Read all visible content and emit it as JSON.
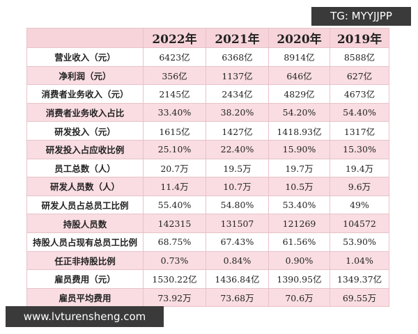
{
  "table": {
    "columns": [
      "",
      "2022年",
      "2021年",
      "2020年",
      "2019年"
    ],
    "rows": [
      [
        "营业收入（元）",
        "6423亿",
        "6368亿",
        "8914亿",
        "8588亿"
      ],
      [
        "净利润（元）",
        "356亿",
        "1137亿",
        "646亿",
        "627亿"
      ],
      [
        "消费者业务收入（元）",
        "2145亿",
        "2434亿",
        "4829亿",
        "4673亿"
      ],
      [
        "消费者业务收入占比",
        "33.40%",
        "38.20%",
        "54.20%",
        "54.40%"
      ],
      [
        "研发投入（元）",
        "1615亿",
        "1427亿",
        "1418.93亿",
        "1317亿"
      ],
      [
        "研发投入占应收比例",
        "25.10%",
        "22.40%",
        "15.90%",
        "15.30%"
      ],
      [
        "员工总数（人）",
        "20.7万",
        "19.5万",
        "19.7万",
        "19.4万"
      ],
      [
        "研发人员数（人）",
        "11.4万",
        "10.7万",
        "10.5万",
        "9.6万"
      ],
      [
        "研发人员占总员工比例",
        "55.40%",
        "54.80%",
        "53.40%",
        "49%"
      ],
      [
        "持股人员数",
        "142315",
        "131507",
        "121269",
        "104572"
      ],
      [
        "持股人员占现有总员工比例",
        "68.75%",
        "67.43%",
        "61.56%",
        "53.90%"
      ],
      [
        "任正非持股比例",
        "0.73%",
        "0.84%",
        "0.90%",
        "1.04%"
      ],
      [
        "雇员费用（元）",
        "1530.22亿",
        "1436.84亿",
        "1390.95亿",
        "1349.37亿"
      ],
      [
        "雇员平均费用",
        "73.92万",
        "73.68万",
        "70.6万",
        "69.55万"
      ]
    ]
  },
  "overlays": {
    "tag": "TG: MYYJJPP",
    "site": "www.lvturensheng.com"
  }
}
